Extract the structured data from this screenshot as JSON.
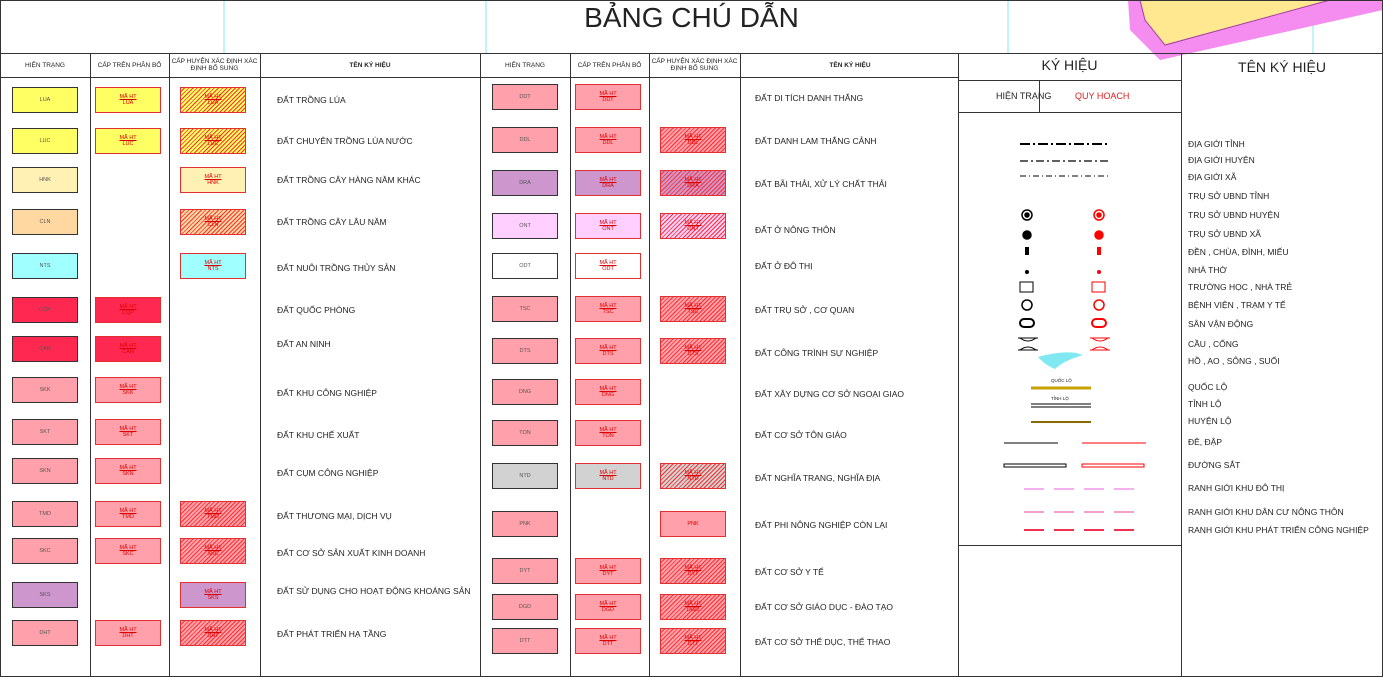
{
  "header": {
    "title": "BẢNG CHÚ DẪN"
  },
  "land_table": {
    "headers": [
      "HIỆN TRẠNG",
      "CẤP TRÊN PHÂN BỔ",
      "CẤP HUYỆN XÁC ĐỊNH XÁC ĐỊNH BỔ SUNG",
      "TÊN KÝ HIỆU"
    ],
    "mark_label": "MÃ HT",
    "groups": [
      {
        "rows": [
          {
            "code": "LUA",
            "color": "#ffff64",
            "upper": true,
            "district": "hatched",
            "name": "ĐẤT TRỒNG LÚA"
          },
          {
            "code": "LUC",
            "color": "#ffff64",
            "upper": true,
            "district": "hatched",
            "name": "ĐẤT CHUYÊN TRỒNG LÚA NƯỚC"
          },
          {
            "code": "HNK",
            "color": "#fff0b4",
            "upper": false,
            "district": "plain",
            "name": "ĐẤT TRỒNG CÂY HÀNG NĂM KHÁC"
          },
          {
            "code": "CLN",
            "color": "#ffd7a0",
            "upper": false,
            "district": "hatched",
            "name": "ĐẤT TRỒNG CÂY LÂU NĂM"
          },
          {
            "code": "NTS",
            "color": "#a0ffff",
            "upper": false,
            "district": "plain",
            "name": "ĐẤT NUÔI TRỒNG THỦY SẢN"
          },
          {
            "code": "CQP",
            "color": "#ff2850",
            "upper": true,
            "district": null,
            "name": "ĐẤT QUỐC PHÒNG"
          },
          {
            "code": "CAN",
            "color": "#ff2850",
            "upper": true,
            "district": null,
            "name": "ĐẤT AN NINH"
          },
          {
            "code": "SKK",
            "color": "#ffa0aa",
            "upper": true,
            "district": null,
            "name": "ĐẤT KHU CÔNG NGHIỆP"
          },
          {
            "code": "SKT",
            "color": "#ffa0aa",
            "upper": true,
            "district": null,
            "name": "ĐẤT KHU CHẾ XUẤT"
          },
          {
            "code": "SKN",
            "color": "#ffa0aa",
            "upper": true,
            "district": null,
            "name": "ĐẤT CỤM CÔNG NGHIỆP"
          },
          {
            "code": "TMD",
            "color": "#ffa0aa",
            "upper": true,
            "district": "hatched",
            "name": "ĐẤT THƯƠNG MẠI, DỊCH VỤ"
          },
          {
            "code": "SKC",
            "color": "#ffa0aa",
            "upper": true,
            "district": "hatched",
            "name": "ĐẤT CƠ SỞ SẢN XUẤT KINH DOANH"
          },
          {
            "code": "SKS",
            "color": "#cd96cd",
            "upper": false,
            "district": "plain",
            "name": "ĐẤT SỬ DỤNG CHO HOẠT ĐỘNG KHOÁNG SẢN"
          },
          {
            "code": "DHT",
            "color": "#ffa0aa",
            "upper": true,
            "district": "hatched",
            "name": "ĐẤT PHÁT TRIỂN HẠ TẦNG"
          }
        ]
      },
      {
        "rows": [
          {
            "code": "DDT",
            "color": "#ffa0aa",
            "upper": true,
            "district": null,
            "name": "ĐẤT DI TÍCH DANH THẮNG"
          },
          {
            "code": "DDL",
            "color": "#ffa0aa",
            "upper": true,
            "district": "hatched",
            "name": "ĐẤT DANH LAM THẮNG CẢNH"
          },
          {
            "code": "DRA",
            "color": "#cd96cd",
            "upper": true,
            "district": "hatched",
            "name": "ĐẤT BÃI THẢI, XỬ LÝ CHẤT THẢI"
          },
          {
            "code": "ONT",
            "color": "#ffd0ff",
            "upper": true,
            "district": "hatched",
            "name": "ĐẤT Ở NÔNG THÔN"
          },
          {
            "code": "ODT",
            "color": "#ff a0ff",
            "upper": true,
            "district": null,
            "name": "ĐẤT Ở ĐÔ THỊ"
          },
          {
            "code": "TSC",
            "color": "#ffa0aa",
            "upper": true,
            "district": "hatched",
            "name": "ĐẤT TRỤ SỞ , CƠ QUAN"
          },
          {
            "code": "DTS",
            "color": "#ffa0aa",
            "upper": true,
            "district": "hatched",
            "name": "ĐẤT CÔNG TRÌNH SỰ NGHIỆP"
          },
          {
            "code": "DNG",
            "color": "#ffa0aa",
            "upper": true,
            "district": null,
            "name": "ĐẤT XÂY DỰNG CƠ SỞ NGOẠI GIAO"
          },
          {
            "code": "TON",
            "color": "#ffa0aa",
            "upper": true,
            "district": null,
            "name": "ĐẤT CƠ SỞ TÔN GIÁO"
          },
          {
            "code": "NTD",
            "color": "#d2d2d2",
            "upper": true,
            "district": "hatched",
            "name": "ĐẤT NGHĨA TRANG, NGHĨA ĐỊA"
          },
          {
            "code": "PNK",
            "color": "#ffa0aa",
            "upper": false,
            "district": "code-only",
            "name": "ĐẤT PHI NÔNG NGHIỆP CÒN LẠI"
          },
          {
            "code": "DYT",
            "color": "#ffa0aa",
            "upper": true,
            "district": "hatched",
            "name": "ĐẤT CƠ SỞ Y TẾ"
          },
          {
            "code": "DGD",
            "color": "#ffa0aa",
            "upper": true,
            "district": "hatched",
            "name": "ĐẤT CƠ SỞ GIÁO DỤC - ĐÀO TẠO"
          },
          {
            "code": "DTT",
            "color": "#ffa0aa",
            "upper": true,
            "district": "hatched",
            "name": "ĐẤT CƠ SỞ THỂ DỤC, THỂ THAO"
          }
        ]
      }
    ]
  },
  "symbol_table": {
    "title": "KÝ HIỆU",
    "name_title": "TÊN KÝ HIỆU",
    "current": "HIỆN TRẠNG",
    "planned": "QUY HOẠCH",
    "road_labels": [
      "QUỐC LỘ",
      "TỈNH LỘ"
    ],
    "names": [
      "ĐỊA GIỚI TỈNH",
      "ĐỊA GIỚI HUYỆN",
      "ĐỊA GIỚI XÃ",
      "TRỤ SỞ UBND TỈNH",
      "TRỤ SỞ UBND HUYỆN",
      "TRỤ SỞ UBND XÃ",
      "ĐỀN , CHÙA, ĐÌNH, MIẾU",
      "NHÀ THỜ",
      "TRƯỜNG HỌC , NHÀ TRẺ",
      "BỆNH VIỆN , TRẠM Y TẾ",
      "SÂN VẬN ĐỘNG",
      "CẦU , CỐNG",
      "HỒ , AO , SÔNG , SUỐI",
      "QUỐC LỘ",
      "TỈNH LỘ",
      "HUYỆN LỘ",
      "ĐÊ, ĐẬP",
      "ĐƯỜNG SẮT",
      "RANH GIỚI KHU ĐÔ THỊ",
      "RANH GIỚI KHU DÂN CƯ NÔNG THÔN",
      "RANH GIỚI KHU PHÁT TRIỂN CÔNG NGHIỆP"
    ]
  }
}
